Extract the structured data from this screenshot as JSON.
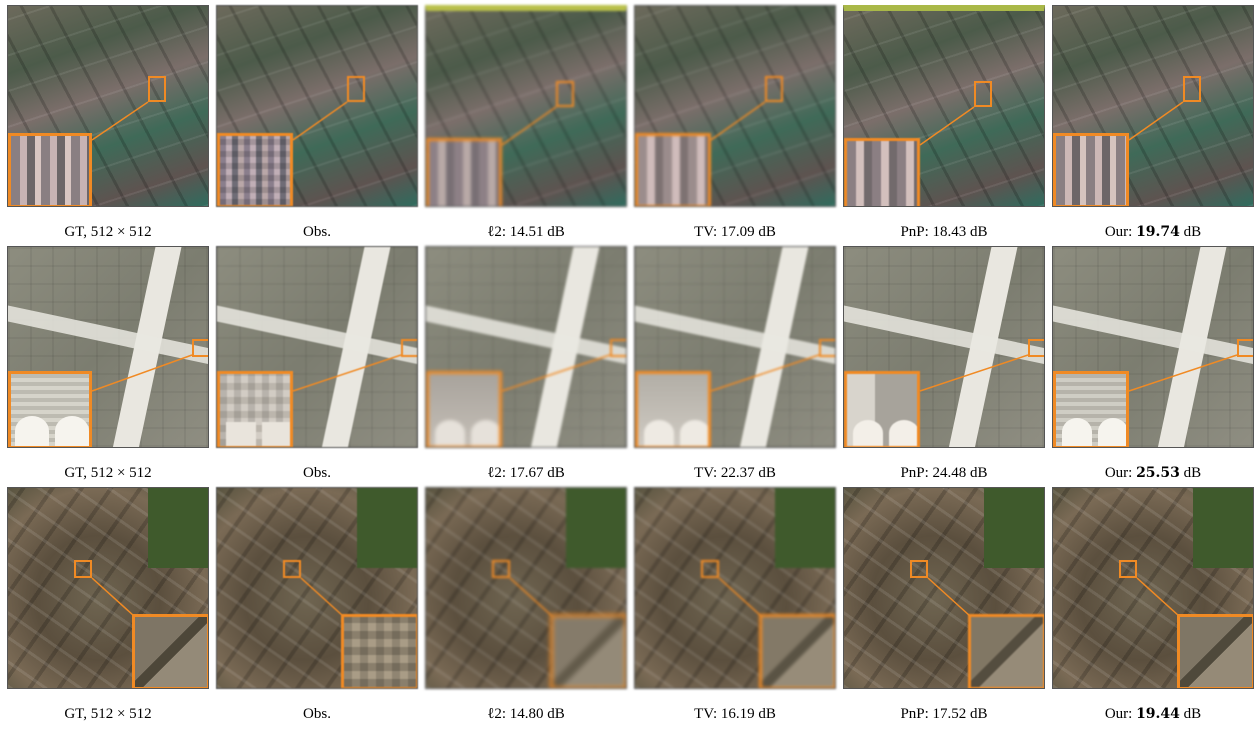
{
  "rows": [
    {
      "scene": "farmland",
      "captions": [
        {
          "prefix": "GT, 512 × 512",
          "value": "",
          "suffix": ""
        },
        {
          "prefix": "Obs.",
          "value": "",
          "suffix": ""
        },
        {
          "prefix": "ℓ2: 14.51 dB",
          "value": "",
          "suffix": ""
        },
        {
          "prefix": "TV: 17.09 dB",
          "value": "",
          "suffix": ""
        },
        {
          "prefix": "PnP: 18.43 dB",
          "value": "",
          "suffix": ""
        },
        {
          "prefix": "Our: ",
          "value": "19.74",
          "suffix": " dB"
        }
      ]
    },
    {
      "scene": "airport",
      "captions": [
        {
          "prefix": "GT, 512 × 512",
          "value": "",
          "suffix": ""
        },
        {
          "prefix": "Obs.",
          "value": "",
          "suffix": ""
        },
        {
          "prefix": "ℓ2: 17.67 dB",
          "value": "",
          "suffix": ""
        },
        {
          "prefix": "TV: 22.37 dB",
          "value": "",
          "suffix": ""
        },
        {
          "prefix": "PnP: 24.48 dB",
          "value": "",
          "suffix": ""
        },
        {
          "prefix": "Our: ",
          "value": "25.53",
          "suffix": " dB"
        }
      ]
    },
    {
      "scene": "buildings",
      "captions": [
        {
          "prefix": "GT, 512 × 512",
          "value": "",
          "suffix": ""
        },
        {
          "prefix": "Obs.",
          "value": "",
          "suffix": ""
        },
        {
          "prefix": "ℓ2: 14.80 dB",
          "value": "",
          "suffix": ""
        },
        {
          "prefix": "TV: 16.19 dB",
          "value": "",
          "suffix": ""
        },
        {
          "prefix": "PnP: 17.52 dB",
          "value": "",
          "suffix": ""
        },
        {
          "prefix": "Our: ",
          "value": "19.44",
          "suffix": " dB"
        }
      ]
    }
  ],
  "colors": {
    "highlight": "#f08a24",
    "caption_text": "#000000"
  }
}
